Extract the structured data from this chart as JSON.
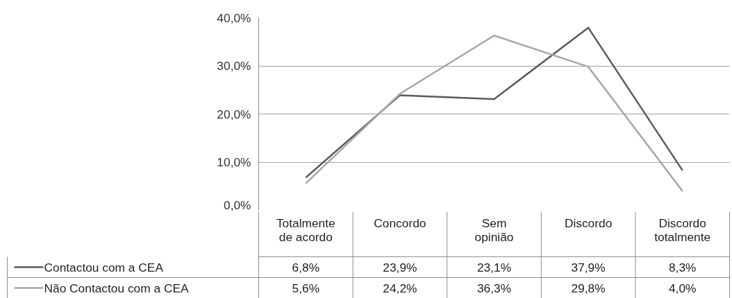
{
  "chart_data": {
    "type": "line",
    "categories": [
      "Totalmente de acordo",
      "Concordo",
      "Sem opinião",
      "Discordo",
      "Discordo totalmente"
    ],
    "series": [
      {
        "name": "Contactou com a CEA",
        "color": "#595959",
        "values": [
          6.8,
          23.9,
          23.1,
          37.9,
          8.3
        ],
        "value_labels": [
          "6,8%",
          "23,9%",
          "23,1%",
          "37,9%",
          "8,3%"
        ]
      },
      {
        "name": "Não Contactou com a CEA",
        "color": "#a6a6a6",
        "values": [
          5.6,
          24.2,
          36.3,
          29.8,
          4.0
        ],
        "value_labels": [
          "5,6%",
          "24,2%",
          "36,3%",
          "29,8%",
          "4,0%"
        ]
      }
    ],
    "ylim": [
      0,
      40
    ],
    "yticks": [
      {
        "value": 0,
        "label": "0,0%"
      },
      {
        "value": 10,
        "label": "10,0%"
      },
      {
        "value": 20,
        "label": "20,0%"
      },
      {
        "value": 30,
        "label": "30,0%"
      },
      {
        "value": 40,
        "label": "40,0%"
      }
    ],
    "grid": "y",
    "legend": "bottom",
    "marker": "none",
    "line_style": "solid"
  }
}
